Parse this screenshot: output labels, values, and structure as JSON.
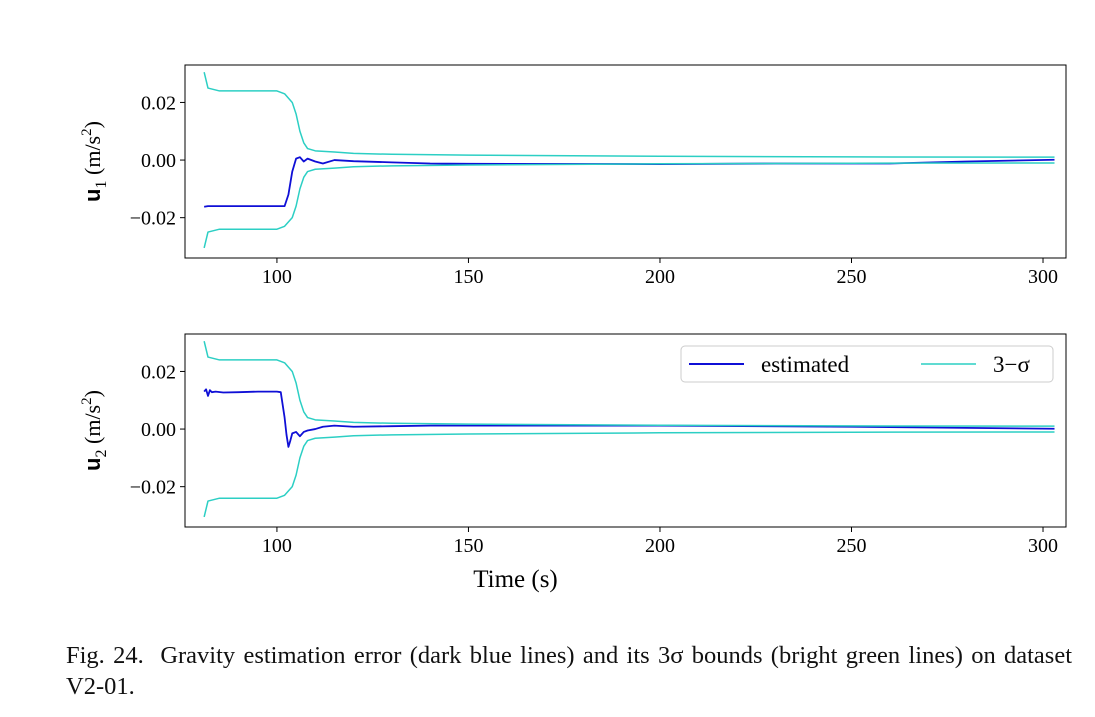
{
  "caption": {
    "prefix": "Fig. 24.",
    "text": "Gravity estimation error (dark blue lines) and its 3σ bounds (bright green lines) on dataset V2-01."
  },
  "colors": {
    "estimated": "#0f0fd6",
    "bound": "#2ccfc4",
    "axis": "#000000"
  },
  "chart_data": [
    {
      "type": "line",
      "ylabel": "u1 (m/s2)",
      "ylabel_parts": {
        "sym": "u",
        "sub": "1",
        "unit_open": " (m/s",
        "sup": "2",
        "unit_close": ")"
      },
      "xlabel": "",
      "xlim": [
        76,
        306
      ],
      "ylim": [
        -0.034,
        0.033
      ],
      "xticks": [
        100,
        150,
        200,
        250,
        300
      ],
      "yticks": [
        -0.02,
        0.0,
        0.02
      ],
      "ytick_labels": [
        "−0.02",
        "0.00",
        "0.02"
      ],
      "legend": null,
      "series": [
        {
          "key": "estimated",
          "x": [
            81,
            82,
            90,
            100,
            102,
            103,
            104,
            105,
            106,
            107,
            108,
            110,
            112,
            115,
            120,
            130,
            140,
            150,
            200,
            230,
            260,
            280,
            303
          ],
          "y": [
            -0.0162,
            -0.016,
            -0.016,
            -0.016,
            -0.016,
            -0.012,
            -0.004,
            0.0005,
            0.001,
            -0.0005,
            0.0005,
            -0.0005,
            -0.0012,
            0.0,
            -0.0004,
            -0.0008,
            -0.0012,
            -0.0013,
            -0.0014,
            -0.0012,
            -0.0012,
            -0.0005,
            0.0001
          ]
        },
        {
          "key": "bound",
          "x": [
            81,
            82,
            85,
            100,
            102,
            104,
            105,
            106,
            107,
            108,
            110,
            115,
            120,
            130,
            150,
            200,
            250,
            303
          ],
          "y": [
            0.0305,
            0.025,
            0.024,
            0.024,
            0.023,
            0.02,
            0.016,
            0.01,
            0.006,
            0.004,
            0.0032,
            0.0028,
            0.0023,
            0.002,
            0.0017,
            0.0013,
            0.0011,
            0.001
          ]
        },
        {
          "key": "bound",
          "x": [
            81,
            82,
            85,
            100,
            102,
            104,
            105,
            106,
            107,
            108,
            110,
            115,
            120,
            130,
            150,
            200,
            250,
            303
          ],
          "y": [
            -0.0305,
            -0.025,
            -0.024,
            -0.024,
            -0.023,
            -0.02,
            -0.016,
            -0.01,
            -0.006,
            -0.004,
            -0.0032,
            -0.0028,
            -0.0023,
            -0.002,
            -0.0017,
            -0.0013,
            -0.0011,
            -0.001
          ]
        }
      ]
    },
    {
      "type": "line",
      "ylabel": "u2 (m/s2)",
      "ylabel_parts": {
        "sym": "u",
        "sub": "2",
        "unit_open": " (m/s",
        "sup": "2",
        "unit_close": ")"
      },
      "xlabel": "Time (s)",
      "xlim": [
        76,
        306
      ],
      "ylim": [
        -0.034,
        0.033
      ],
      "xticks": [
        100,
        150,
        200,
        250,
        300
      ],
      "yticks": [
        -0.02,
        0.0,
        0.02
      ],
      "ytick_labels": [
        "−0.02",
        "0.00",
        "0.02"
      ],
      "legend": {
        "placement": "top-right",
        "entries": [
          {
            "key": "estimated",
            "label": "estimated"
          },
          {
            "key": "bound",
            "label": "3−σ"
          }
        ]
      },
      "series": [
        {
          "key": "estimated",
          "x": [
            81,
            81.5,
            82,
            82.5,
            83,
            84,
            86,
            90,
            95,
            100,
            101,
            102,
            102.5,
            103,
            103.5,
            104,
            105,
            106,
            107,
            108,
            110,
            112,
            115,
            120,
            130,
            140,
            150,
            200,
            250,
            303
          ],
          "y": [
            0.013,
            0.0138,
            0.0115,
            0.0135,
            0.0128,
            0.013,
            0.0127,
            0.0128,
            0.013,
            0.013,
            0.0128,
            0.004,
            -0.002,
            -0.0062,
            -0.004,
            -0.0015,
            -0.001,
            -0.0025,
            -0.001,
            -0.0005,
            0.0,
            0.0008,
            0.0012,
            0.0008,
            0.001,
            0.0012,
            0.0012,
            0.0012,
            0.0008,
            0.0001
          ]
        },
        {
          "key": "bound",
          "x": [
            81,
            82,
            85,
            100,
            102,
            104,
            105,
            106,
            107,
            108,
            110,
            115,
            120,
            130,
            150,
            200,
            250,
            303
          ],
          "y": [
            0.0305,
            0.025,
            0.024,
            0.024,
            0.023,
            0.02,
            0.016,
            0.01,
            0.006,
            0.004,
            0.0032,
            0.0028,
            0.0023,
            0.002,
            0.0017,
            0.0013,
            0.0011,
            0.001
          ]
        },
        {
          "key": "bound",
          "x": [
            81,
            82,
            85,
            100,
            102,
            104,
            105,
            106,
            107,
            108,
            110,
            115,
            120,
            130,
            150,
            200,
            250,
            303
          ],
          "y": [
            -0.0305,
            -0.025,
            -0.024,
            -0.024,
            -0.023,
            -0.02,
            -0.016,
            -0.01,
            -0.006,
            -0.004,
            -0.0032,
            -0.0028,
            -0.0023,
            -0.002,
            -0.0017,
            -0.0013,
            -0.0011,
            -0.001
          ]
        }
      ]
    }
  ]
}
